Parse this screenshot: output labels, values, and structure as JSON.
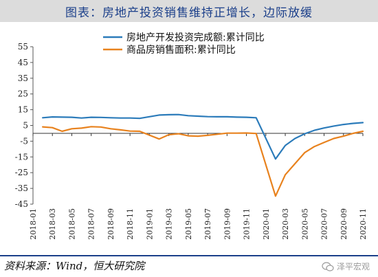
{
  "title": "图表：房地产投资销售维持正增长，边际放缓",
  "source": "资料来源：Wind，恒大研究院",
  "watermark": "泽平宏观",
  "colors": {
    "series1": "#2b7bba",
    "series2": "#e8821e",
    "title_text": "#1b3f8a",
    "title_bg": "#dcdcdc"
  },
  "chart_data": {
    "type": "line",
    "ylim": [
      -45,
      55
    ],
    "yticks": [
      55,
      45,
      35,
      25,
      15,
      5,
      -5,
      -15,
      -25,
      -35,
      -45
    ],
    "grid": false,
    "legend": "top-center",
    "x": [
      "2018-01",
      "2018-02",
      "2018-03",
      "2018-04",
      "2018-05",
      "2018-06",
      "2018-07",
      "2018-08",
      "2018-09",
      "2018-10",
      "2018-11",
      "2018-12",
      "2019-01",
      "2019-02",
      "2019-03",
      "2019-04",
      "2019-05",
      "2019-06",
      "2019-07",
      "2019-08",
      "2019-09",
      "2019-10",
      "2019-11",
      "2019-12",
      "2020-01",
      "2020-02",
      "2020-03",
      "2020-04",
      "2020-05",
      "2020-06",
      "2020-07",
      "2020-08",
      "2020-09",
      "2020-10",
      "2020-11"
    ],
    "xtick_labels": [
      "2018-01",
      "2018-03",
      "2018-05",
      "2018-07",
      "2018-09",
      "2018-11",
      "2019-01",
      "2019-03",
      "2019-05",
      "2019-07",
      "2019-09",
      "2019-11",
      "2020-01",
      "2020-03",
      "2020-05",
      "2020-07",
      "2020-09",
      "2020-11"
    ],
    "series": [
      {
        "name": "房地产开发投资完成额:累计同比",
        "values": [
          null,
          9.9,
          10.4,
          10.3,
          10.2,
          9.7,
          10.2,
          10.1,
          9.9,
          9.7,
          9.7,
          9.5,
          null,
          11.6,
          11.8,
          11.9,
          11.2,
          10.9,
          10.6,
          10.5,
          10.5,
          10.3,
          10.2,
          9.9,
          null,
          -16.3,
          -7.7,
          -3.3,
          -0.3,
          1.9,
          3.4,
          4.6,
          5.6,
          6.3,
          6.8
        ]
      },
      {
        "name": "商品房销售面积:累计同比",
        "values": [
          null,
          4.1,
          3.6,
          1.3,
          2.9,
          3.3,
          4.2,
          4.0,
          2.9,
          2.2,
          1.4,
          1.3,
          null,
          -3.6,
          -0.9,
          -0.3,
          -1.6,
          -1.8,
          -1.3,
          -0.6,
          0.1,
          0.1,
          0.2,
          -0.1,
          null,
          -39.9,
          -26.3,
          -19.3,
          -12.3,
          -8.4,
          -5.8,
          -3.3,
          -1.8,
          0.0,
          1.3
        ]
      }
    ]
  }
}
